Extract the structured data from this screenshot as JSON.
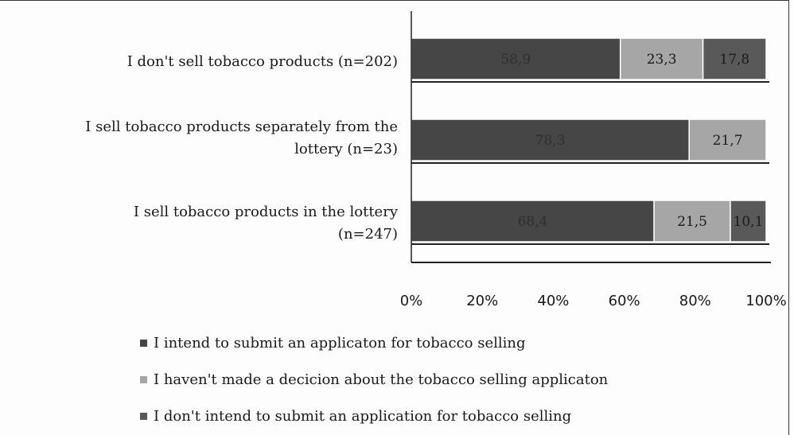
{
  "chart_data": {
    "type": "bar",
    "orientation": "horizontal",
    "stacked": true,
    "categories": [
      "I don't sell tobacco products (n=202)",
      "I sell tobacco products separately from the\nlottery (n=23)",
      "I sell tobacco products in the lottery\n(n=247)"
    ],
    "series": [
      {
        "name": "I intend to submit an applicaton for tobacco selling",
        "color": "#464646",
        "values": [
          58.9,
          78.3,
          68.4
        ],
        "labels": [
          "58,9",
          "78,3",
          "68,4"
        ]
      },
      {
        "name": "I haven't made a decicion about the tobacco selling applicaton",
        "color": "#a6a6a6",
        "values": [
          23.3,
          21.7,
          21.5
        ],
        "labels": [
          "23,3",
          "21,7",
          "21,5"
        ]
      },
      {
        "name": "I don't intend to submit an application for tobacco selling",
        "color": "#595959",
        "values": [
          17.8,
          0,
          10.1
        ],
        "labels": [
          "17,8",
          "",
          "10,1"
        ]
      }
    ],
    "xaxis": {
      "min": 0,
      "max": 100,
      "ticks": [
        "0%",
        "20%",
        "40%",
        "60%",
        "80%",
        "100%"
      ]
    },
    "legend_position": "bottom",
    "grid": false
  }
}
